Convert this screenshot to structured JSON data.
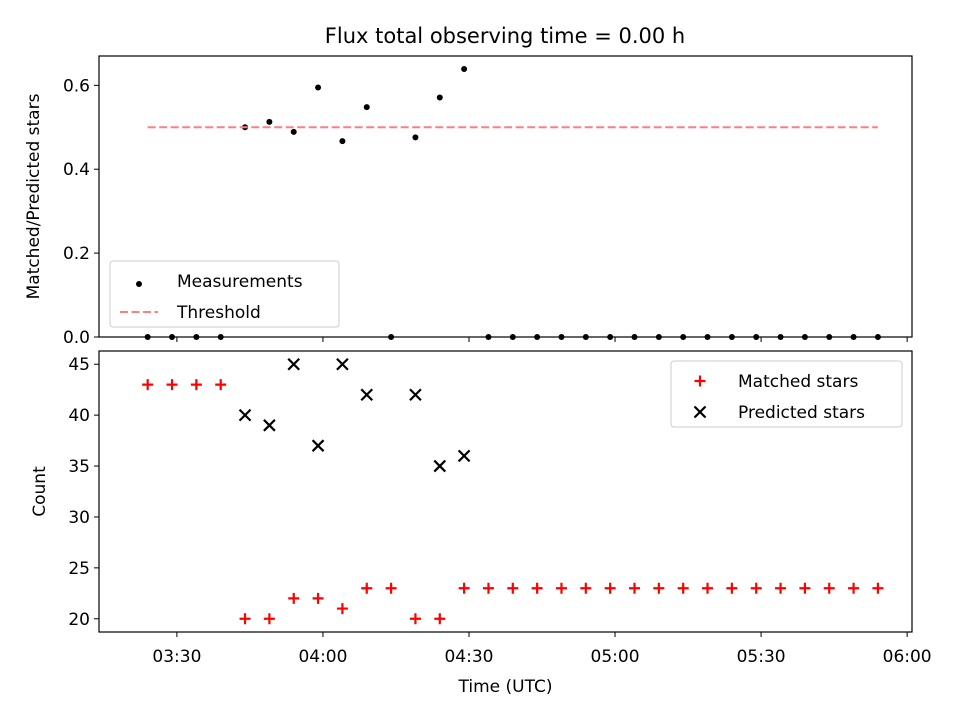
{
  "title": "Flux total observing time = 0.00 h",
  "chart_data": [
    {
      "type": "scatter",
      "name": "ratio-panel",
      "xlabel": "",
      "ylabel": "Matched/Predicted stars",
      "xlim": [
        "03:14",
        "06:01"
      ],
      "ylim": [
        0,
        0.67
      ],
      "yticks": [
        0.0,
        0.2,
        0.4,
        0.6
      ],
      "ytick_labels": [
        "0.0",
        "0.2",
        "0.4",
        "0.6"
      ],
      "legend_position": "lower-left",
      "series": [
        {
          "name": "Measurements",
          "marker": "dot",
          "color": "#000000",
          "x": [
            "03:24",
            "03:29",
            "03:34",
            "03:39",
            "03:44",
            "03:49",
            "03:54",
            "03:59",
            "04:04",
            "04:09",
            "04:14",
            "04:19",
            "04:24",
            "04:29",
            "04:34",
            "04:39",
            "04:44",
            "04:49",
            "04:54",
            "04:59",
            "05:04",
            "05:09",
            "05:14",
            "05:19",
            "05:24",
            "05:29",
            "05:34",
            "05:39",
            "05:44",
            "05:49",
            "05:54"
          ],
          "y": [
            0.0,
            0.0,
            0.0,
            0.0,
            0.5,
            0.513,
            0.489,
            0.595,
            0.467,
            0.548,
            0.0,
            0.476,
            0.571,
            0.639,
            0.0,
            0.0,
            0.0,
            0.0,
            0.0,
            0.0,
            0.0,
            0.0,
            0.0,
            0.0,
            0.0,
            0.0,
            0.0,
            0.0,
            0.0,
            0.0,
            0.0
          ]
        },
        {
          "name": "Threshold",
          "style": "dashed",
          "color": "#ff7f7f",
          "x": [
            "03:24",
            "05:54"
          ],
          "y": [
            0.5,
            0.5
          ]
        }
      ]
    },
    {
      "type": "scatter",
      "name": "count-panel",
      "xlabel": "Time (UTC)",
      "ylabel": "Count",
      "xlim": [
        "03:14",
        "06:01"
      ],
      "ylim": [
        18.7,
        46.3
      ],
      "yticks": [
        20,
        25,
        30,
        35,
        40,
        45
      ],
      "ytick_labels": [
        "20",
        "25",
        "30",
        "35",
        "40",
        "45"
      ],
      "xticks": [
        "03:30",
        "04:00",
        "04:30",
        "05:00",
        "05:30",
        "06:00"
      ],
      "xtick_labels": [
        "03:30",
        "04:00",
        "04:30",
        "05:00",
        "05:30",
        "06:00"
      ],
      "legend_position": "upper-right",
      "series": [
        {
          "name": "Matched stars",
          "marker": "plus",
          "color": "#ff0000",
          "x": [
            "03:24",
            "03:29",
            "03:34",
            "03:39",
            "03:44",
            "03:49",
            "03:54",
            "03:59",
            "04:04",
            "04:09",
            "04:14",
            "04:19",
            "04:24",
            "04:29",
            "04:34",
            "04:39",
            "04:44",
            "04:49",
            "04:54",
            "04:59",
            "05:04",
            "05:09",
            "05:14",
            "05:19",
            "05:24",
            "05:29",
            "05:34",
            "05:39",
            "05:44",
            "05:49",
            "05:54"
          ],
          "y": [
            43,
            43,
            43,
            43,
            20,
            20,
            22,
            22,
            21,
            23,
            23,
            20,
            20,
            23,
            23,
            23,
            23,
            23,
            23,
            23,
            23,
            23,
            23,
            23,
            23,
            23,
            23,
            23,
            23,
            23,
            23
          ]
        },
        {
          "name": "Predicted stars",
          "marker": "x",
          "color": "#000000",
          "x": [
            "03:44",
            "03:49",
            "03:54",
            "03:59",
            "04:04",
            "04:09",
            "04:19",
            "04:24",
            "04:29"
          ],
          "y": [
            40,
            39,
            45,
            37,
            45,
            42,
            42,
            35,
            36
          ]
        }
      ]
    }
  ]
}
